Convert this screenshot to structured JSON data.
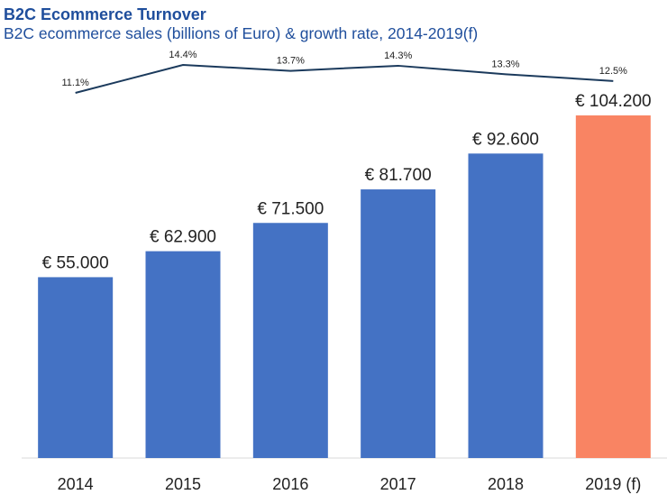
{
  "header": {
    "title": "B2C Ecommerce Turnover",
    "subtitle": "B2C ecommerce sales (billions of Euro) & growth rate, 2014-2019(f)"
  },
  "chart_data": {
    "type": "bar",
    "title": "B2C Ecommerce Turnover",
    "subtitle": "B2C ecommerce sales (billions of Euro) & growth rate, 2014-2019(f)",
    "categories": [
      "2014",
      "2015",
      "2016",
      "2017",
      "2018",
      "2019 (f)"
    ],
    "series": [
      {
        "type": "bar",
        "values": [
          55.0,
          62.9,
          71.5,
          81.7,
          92.6,
          104.2
        ],
        "value_labels": [
          "€ 55.000",
          "€ 62.900",
          "€ 71.500",
          "€ 81.700",
          "€ 92.600",
          "€ 104.200"
        ],
        "colors": [
          "#4472c4",
          "#4472c4",
          "#4472c4",
          "#4472c4",
          "#4472c4",
          "#f98463"
        ]
      },
      {
        "type": "line",
        "values": [
          11.1,
          14.4,
          13.7,
          14.3,
          13.3,
          12.5
        ],
        "value_labels": [
          "11.1%",
          "14.4%",
          "13.7%",
          "14.3%",
          "13.3%",
          "12.5%"
        ],
        "color": "#1b3a5c"
      }
    ],
    "ylim": [
      0,
      104.2
    ],
    "grid": false,
    "legend": "none"
  }
}
